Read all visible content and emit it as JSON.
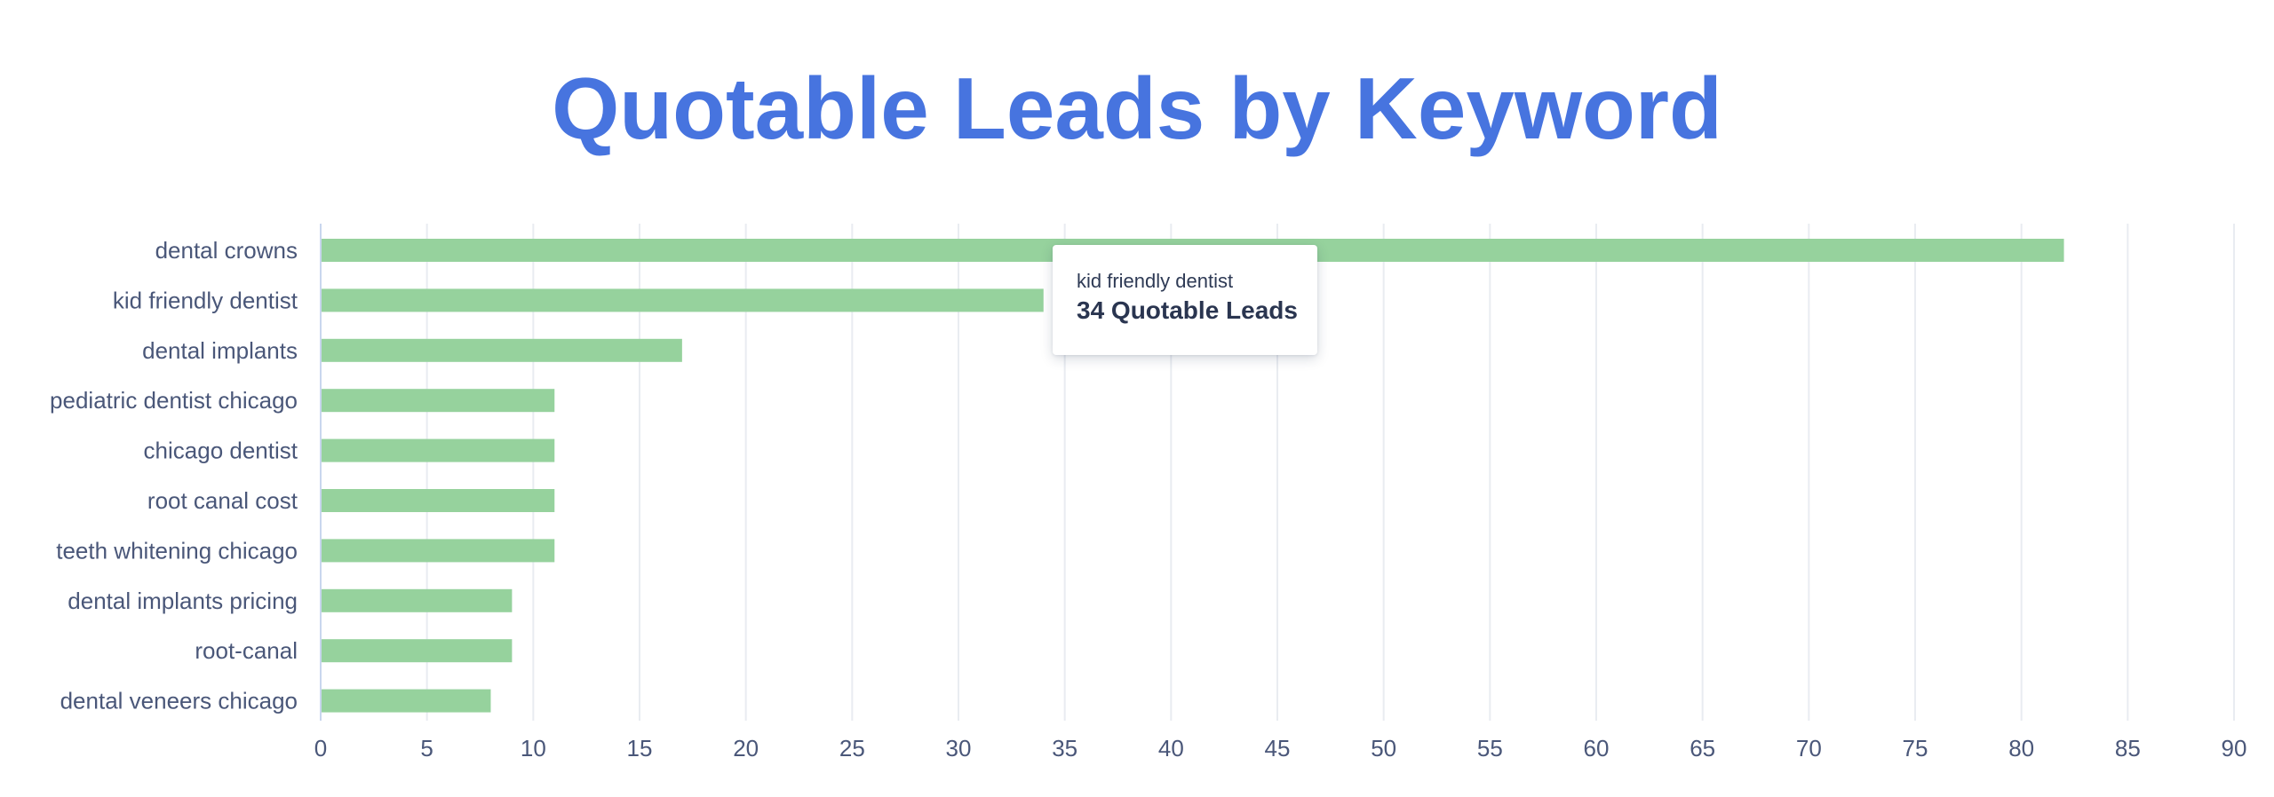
{
  "chart_data": {
    "type": "bar",
    "orientation": "horizontal",
    "title": "Quotable Leads by Keyword",
    "xlabel": "",
    "ylabel": "",
    "categories": [
      "dental crowns",
      "kid friendly dentist",
      "dental implants",
      "pediatric dentist chicago",
      "chicago dentist",
      "root canal cost",
      "teeth whitening chicago",
      "dental implants pricing",
      "root-canal",
      "dental veneers chicago"
    ],
    "values": [
      82,
      34,
      17,
      11,
      11,
      11,
      11,
      9,
      9,
      8
    ],
    "xlim": [
      0,
      90
    ],
    "xticks": [
      0,
      5,
      10,
      15,
      20,
      25,
      30,
      35,
      40,
      45,
      50,
      55,
      60,
      65,
      70,
      75,
      80,
      85,
      90
    ],
    "grid": true,
    "colors": {
      "bar": "#96d29d",
      "title": "#4774df",
      "label": "#4a5779"
    },
    "tooltip": {
      "category": "kid friendly dentist",
      "value_text": "34 Quotable Leads"
    }
  }
}
